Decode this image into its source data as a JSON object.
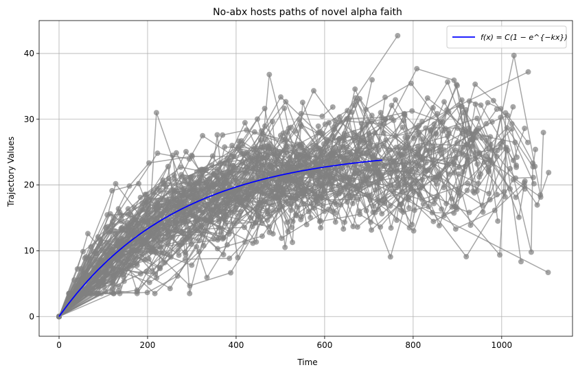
{
  "chart_data": {
    "type": "scatter",
    "title": "No-abx hosts paths of novel alpha faith",
    "xlabel": "Time",
    "ylabel": "Trajectory Values",
    "xlim": [
      -45,
      1160
    ],
    "ylim": [
      -3,
      45
    ],
    "xticks": [
      0,
      200,
      400,
      600,
      800,
      1000
    ],
    "yticks": [
      0,
      10,
      20,
      30,
      40
    ],
    "grid": true,
    "legend_position": "top-right",
    "trajectories": {
      "description_of_colors": "gray",
      "color": "#808080",
      "count": 120,
      "start": [
        0,
        0
      ],
      "x_range": [
        0,
        1110
      ],
      "y_range": [
        3.5,
        42.7
      ],
      "notable_points": [
        {
          "x": 765,
          "y": 42.7
        },
        {
          "x": 475,
          "y": 36.8
        },
        {
          "x": 1060,
          "y": 37.2
        },
        {
          "x": 1105,
          "y": 6.7
        },
        {
          "x": 295,
          "y": 3.5
        },
        {
          "x": 220,
          "y": 31.0
        }
      ]
    },
    "fit_curve": {
      "name": "f(x) = C(1 − e^{−kx})",
      "color": "#0000ff",
      "C": 25.5,
      "k": 0.0037,
      "x_range": [
        0,
        730
      ]
    }
  }
}
